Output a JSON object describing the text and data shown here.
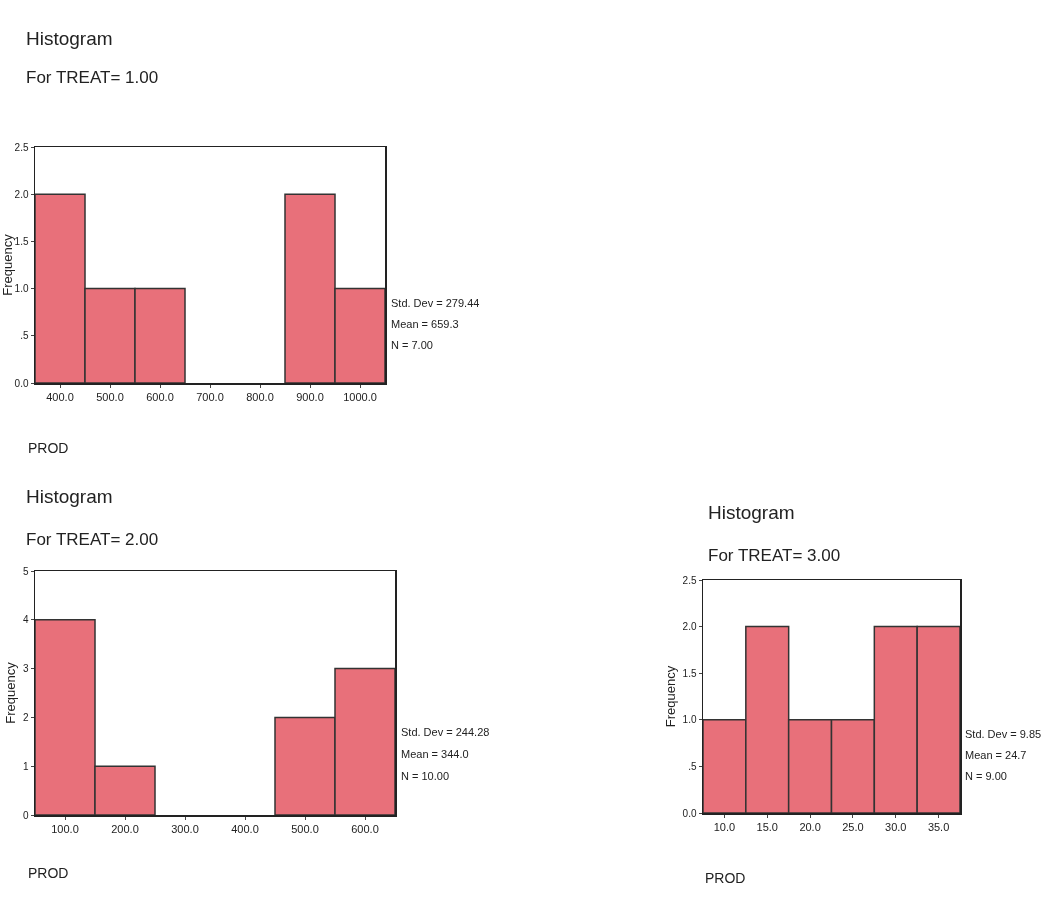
{
  "chart_data": [
    {
      "type": "histogram",
      "title": "Histogram",
      "subtitle": "For TREAT= 1.00",
      "xlabel": "PROD",
      "ylabel": "Frequency",
      "bins": [
        350,
        450,
        550,
        650,
        750,
        850,
        950,
        1050
      ],
      "values": [
        2,
        1,
        1,
        0,
        0,
        2,
        1
      ],
      "color": "#e8707a",
      "xlim": [
        350,
        1050
      ],
      "xticks": [
        {
          "value": 400,
          "label": "400.0"
        },
        {
          "value": 500,
          "label": "500.0"
        },
        {
          "value": 600,
          "label": "600.0"
        },
        {
          "value": 700,
          "label": "700.0"
        },
        {
          "value": 800,
          "label": "800.0"
        },
        {
          "value": 900,
          "label": "900.0"
        },
        {
          "value": 1000,
          "label": "1000.0"
        }
      ],
      "ylim": [
        0,
        2.5
      ],
      "yticks": [
        {
          "value": 0,
          "label": "0.0"
        },
        {
          "value": 0.5,
          "label": ".5"
        },
        {
          "value": 1,
          "label": "1.0"
        },
        {
          "value": 1.5,
          "label": "1.5"
        },
        {
          "value": 2,
          "label": "2.0"
        },
        {
          "value": 2.5,
          "label": "2.5"
        }
      ],
      "annotations": [
        "Std. Dev = 279.44",
        "Mean = 659.3",
        "N = 7.00"
      ]
    },
    {
      "type": "histogram",
      "title": "Histogram",
      "subtitle": "For TREAT= 2.00",
      "xlabel": "PROD",
      "ylabel": "Frequency",
      "bins": [
        50,
        150,
        250,
        350,
        450,
        550,
        650
      ],
      "values": [
        4,
        1,
        0,
        0,
        2,
        3
      ],
      "color": "#e8707a",
      "xlim": [
        50,
        650
      ],
      "xticks": [
        {
          "value": 100,
          "label": "100.0"
        },
        {
          "value": 200,
          "label": "200.0"
        },
        {
          "value": 300,
          "label": "300.0"
        },
        {
          "value": 400,
          "label": "400.0"
        },
        {
          "value": 500,
          "label": "500.0"
        },
        {
          "value": 600,
          "label": "600.0"
        }
      ],
      "ylim": [
        0,
        5
      ],
      "yticks": [
        0,
        1,
        2,
        3,
        4,
        5
      ],
      "annotations": [
        "Std. Dev = 244.28",
        "Mean = 344.0",
        "N = 10.00"
      ]
    },
    {
      "type": "histogram",
      "title": "Histogram",
      "subtitle": "For TREAT= 3.00",
      "xlabel": "PROD",
      "ylabel": "Frequency",
      "bins": [
        7.5,
        12.5,
        17.5,
        22.5,
        27.5,
        32.5,
        37.5
      ],
      "values": [
        1,
        2,
        1,
        1,
        2,
        2
      ],
      "color": "#e8707a",
      "xlim": [
        7.5,
        37.5
      ],
      "xticks": [
        {
          "value": 10,
          "label": "10.0"
        },
        {
          "value": 15,
          "label": "15.0"
        },
        {
          "value": 20,
          "label": "20.0"
        },
        {
          "value": 25,
          "label": "25.0"
        },
        {
          "value": 30,
          "label": "30.0"
        },
        {
          "value": 35,
          "label": "35.0"
        }
      ],
      "ylim": [
        0,
        2.5
      ],
      "yticks": [
        {
          "value": 0,
          "label": "0.0"
        },
        {
          "value": 0.5,
          "label": ".5"
        },
        {
          "value": 1,
          "label": "1.0"
        },
        {
          "value": 1.5,
          "label": "1.5"
        },
        {
          "value": 2,
          "label": "2.0"
        },
        {
          "value": 2.5,
          "label": "2.5"
        }
      ],
      "annotations": [
        "Std. Dev = 9.85",
        "Mean = 24.7",
        "N = 9.00"
      ]
    }
  ]
}
